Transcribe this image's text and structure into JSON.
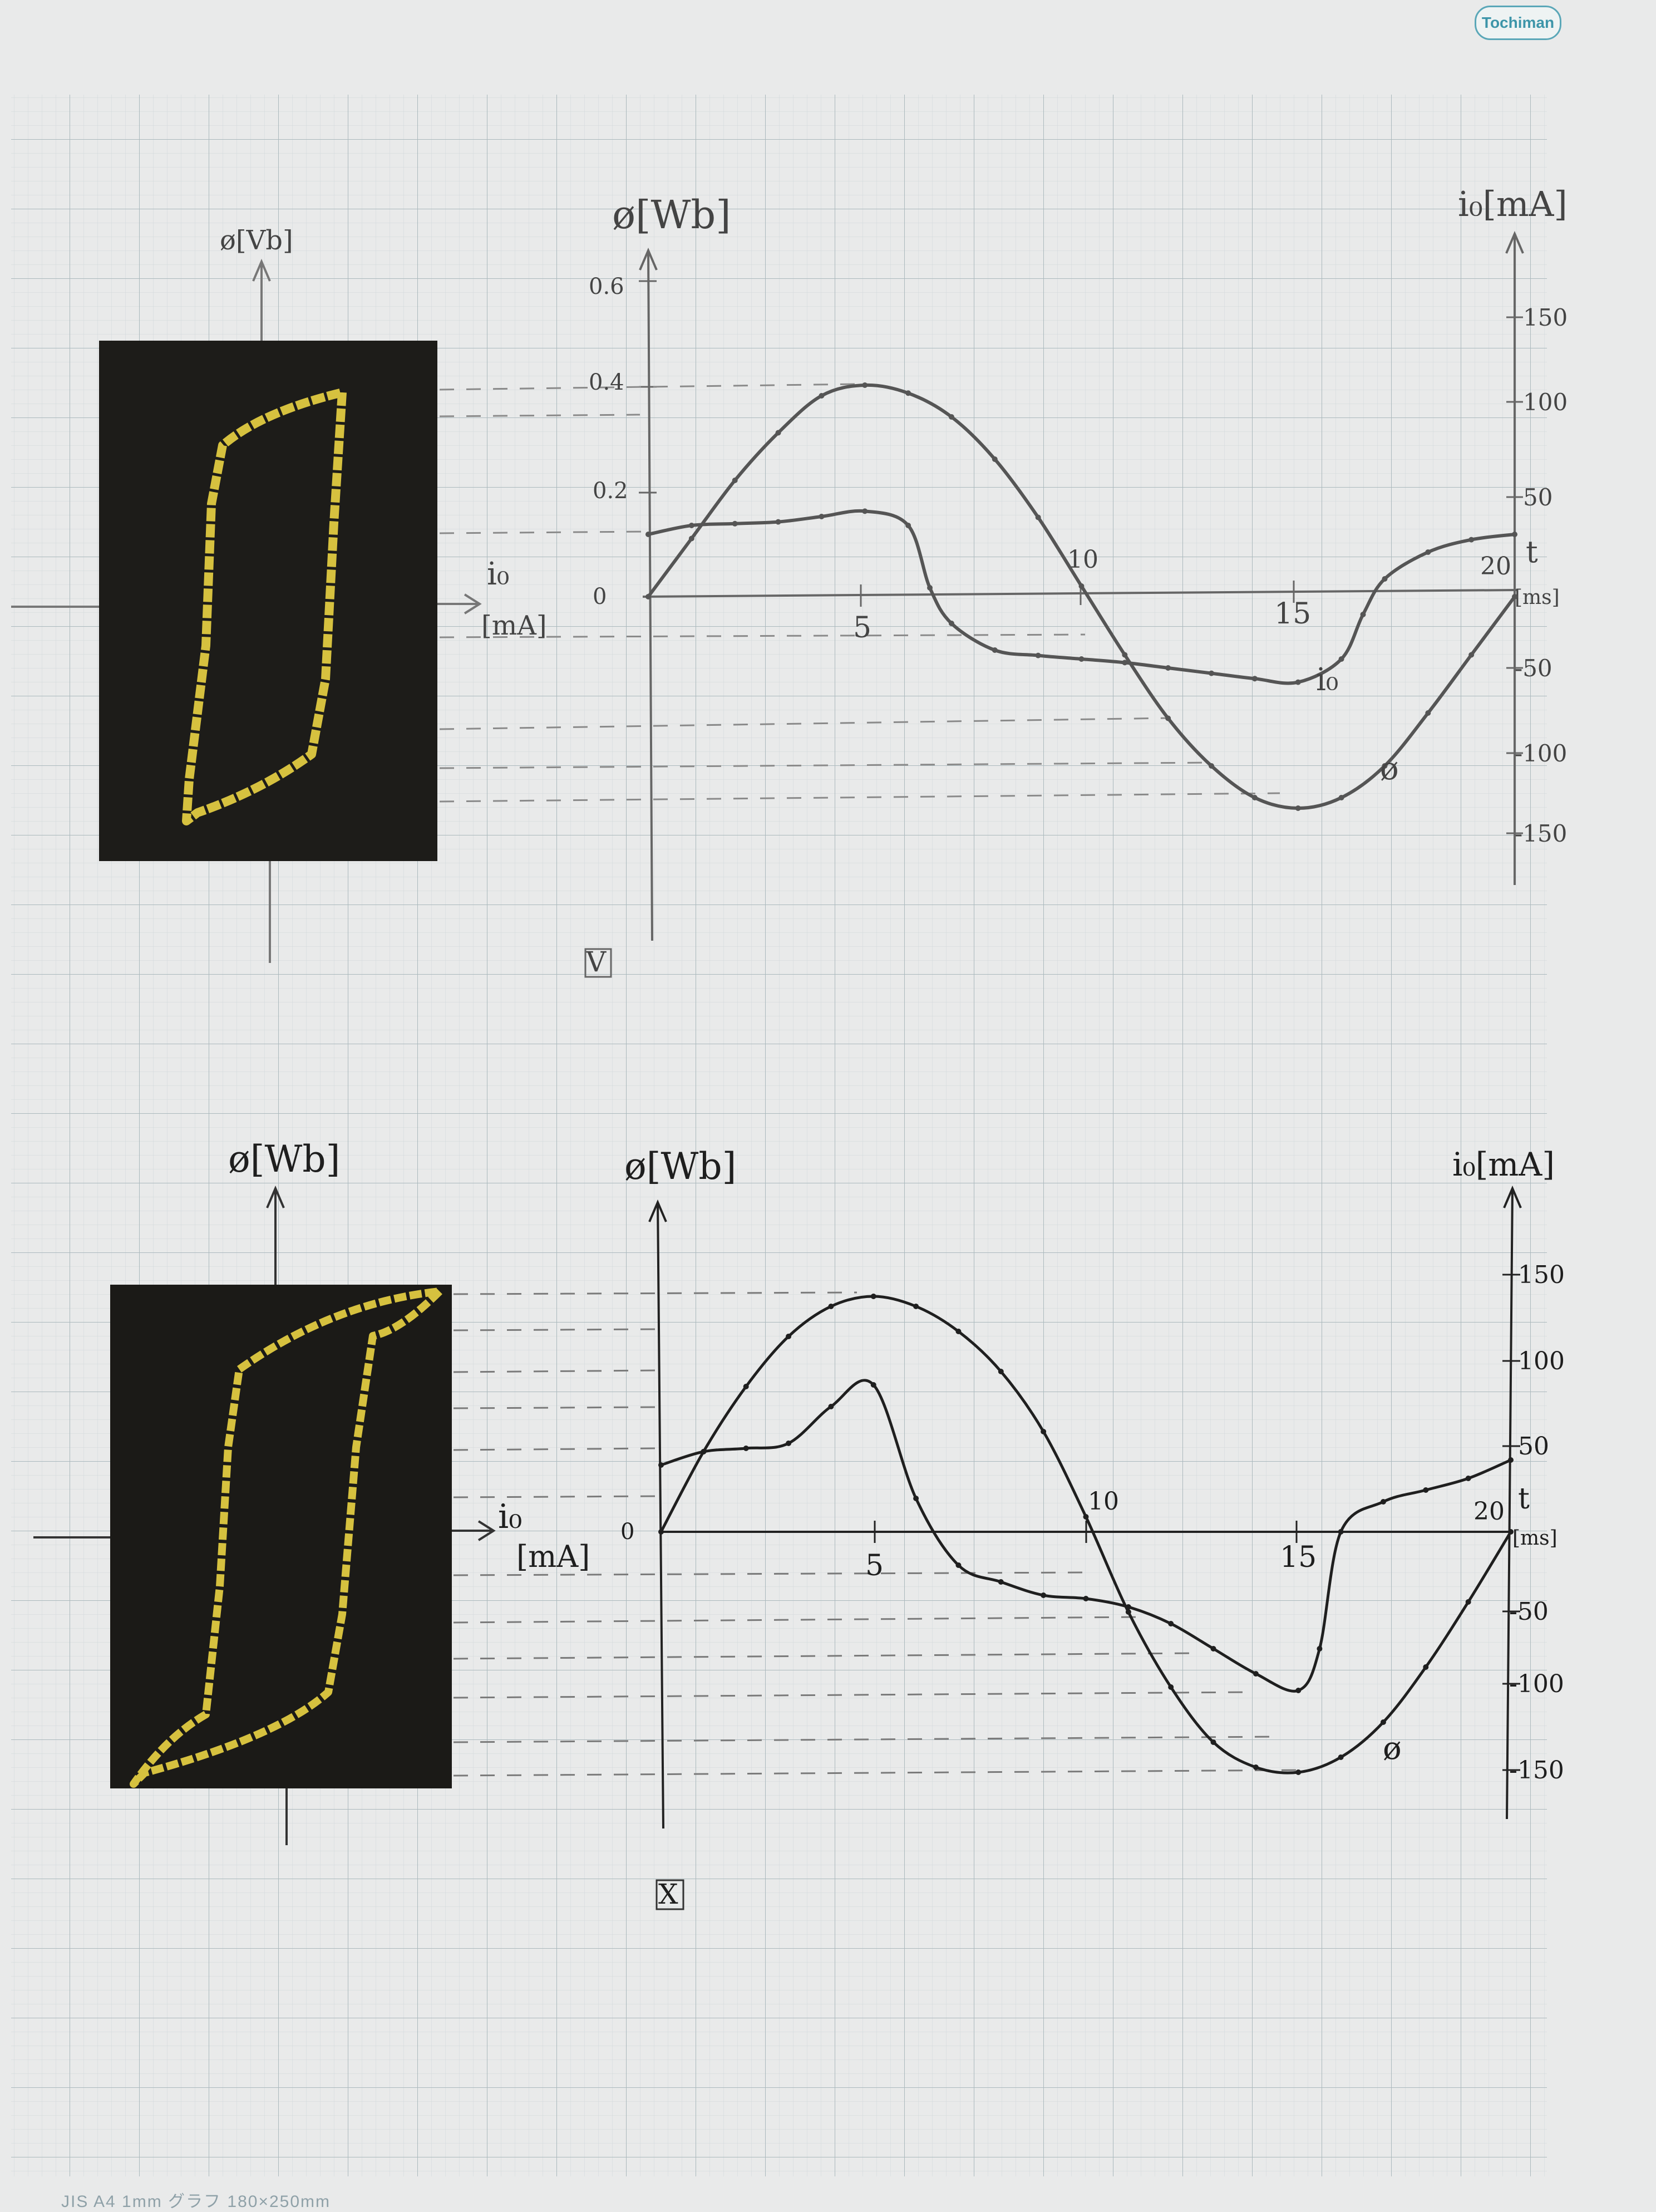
{
  "paper": {
    "brand": "Tochiman",
    "footer": "JIS    A4    1mm グラフ    180×250mm"
  },
  "colors": {
    "paper": "#e9eaea",
    "grid_fine": "#d0d8da",
    "grid_major": "#a9b8bc",
    "pencil_top": "#555555",
    "pencil_bottom": "#1f1f1f",
    "photo_bg": "#1c1b18",
    "trace": "#d6c13f"
  },
  "chart_data": [
    {
      "type": "line",
      "figure_mark": "Ⅴ",
      "x_ticks": [
        "5",
        "10",
        "15",
        "20"
      ],
      "x_label": "t",
      "x_unit": "[ms]",
      "xlim": [
        0,
        20
      ],
      "y_left": {
        "label": "ø[Wb]",
        "ticks": [
          "0.6",
          "0.4",
          "0.2",
          "0"
        ],
        "ylim": [
          -0.6,
          0.6
        ]
      },
      "y_right": {
        "label": "i₀[mA]",
        "ticks": [
          "150",
          "100",
          "50",
          "-50",
          "-100",
          "-150"
        ],
        "ylim": [
          -200,
          200
        ]
      },
      "series": [
        {
          "name": "ø",
          "axis": "left",
          "x": [
            0,
            1,
            2,
            3,
            4,
            5,
            6,
            7,
            8,
            9,
            10,
            11,
            12,
            13,
            14,
            15,
            16,
            17,
            18,
            19,
            20
          ],
          "y": [
            0,
            0.11,
            0.22,
            0.31,
            0.38,
            0.4,
            0.385,
            0.34,
            0.26,
            0.15,
            0.02,
            -0.11,
            -0.23,
            -0.32,
            -0.38,
            -0.4,
            -0.38,
            -0.32,
            -0.22,
            -0.11,
            0
          ]
        },
        {
          "name": "i₀",
          "axis": "right",
          "x": [
            0,
            1,
            2,
            3,
            4,
            5,
            6,
            6.5,
            7,
            8,
            9,
            10,
            11,
            12,
            13,
            14,
            15,
            16,
            16.5,
            17,
            18,
            19,
            20
          ],
          "y": [
            35,
            40,
            41,
            42,
            45,
            48,
            40,
            5,
            -15,
            -30,
            -33,
            -35,
            -37,
            -40,
            -43,
            -46,
            -48,
            -35,
            -10,
            10,
            25,
            32,
            35
          ]
        }
      ],
      "hysteresis_axes": {
        "y_label": "ø[Vb]",
        "x_label": "i₀",
        "x_unit": "[mA]"
      }
    },
    {
      "type": "line",
      "figure_mark": "Ⅹ",
      "x_ticks": [
        "5",
        "10",
        "15",
        "20"
      ],
      "x_label": "t",
      "x_unit": "[ms]",
      "xlim": [
        0,
        20
      ],
      "y_left": {
        "label": "ø[Wb]",
        "ticks": [
          "0"
        ],
        "ylim": [
          -0.6,
          0.6
        ]
      },
      "y_right": {
        "label": "i₀[mA]",
        "ticks": [
          "150",
          "100",
          "50",
          "-50",
          "-100",
          "-150"
        ],
        "ylim": [
          -200,
          200
        ]
      },
      "series": [
        {
          "name": "ø",
          "axis": "left",
          "x": [
            0,
            1,
            2,
            3,
            4,
            5,
            6,
            7,
            8,
            9,
            10,
            11,
            12,
            13,
            14,
            15,
            16,
            17,
            18,
            19,
            20
          ],
          "y": [
            0,
            0.16,
            0.29,
            0.39,
            0.45,
            0.47,
            0.45,
            0.4,
            0.32,
            0.2,
            0.03,
            -0.16,
            -0.31,
            -0.42,
            -0.47,
            -0.48,
            -0.45,
            -0.38,
            -0.27,
            -0.14,
            0
          ]
        },
        {
          "name": "i₀",
          "axis": "right",
          "x": [
            0,
            1,
            2,
            3,
            4,
            5,
            6,
            7,
            8,
            9,
            10,
            11,
            12,
            13,
            14,
            15,
            15.5,
            16,
            17,
            18,
            19,
            20
          ],
          "y": [
            40,
            48,
            50,
            53,
            75,
            88,
            20,
            -20,
            -30,
            -38,
            -40,
            -45,
            -55,
            -70,
            -85,
            -95,
            -70,
            0,
            18,
            25,
            32,
            43
          ]
        }
      ],
      "hysteresis_axes": {
        "y_label": "ø[Wb]",
        "x_label": "i₀",
        "x_unit": "[mA]"
      }
    }
  ]
}
